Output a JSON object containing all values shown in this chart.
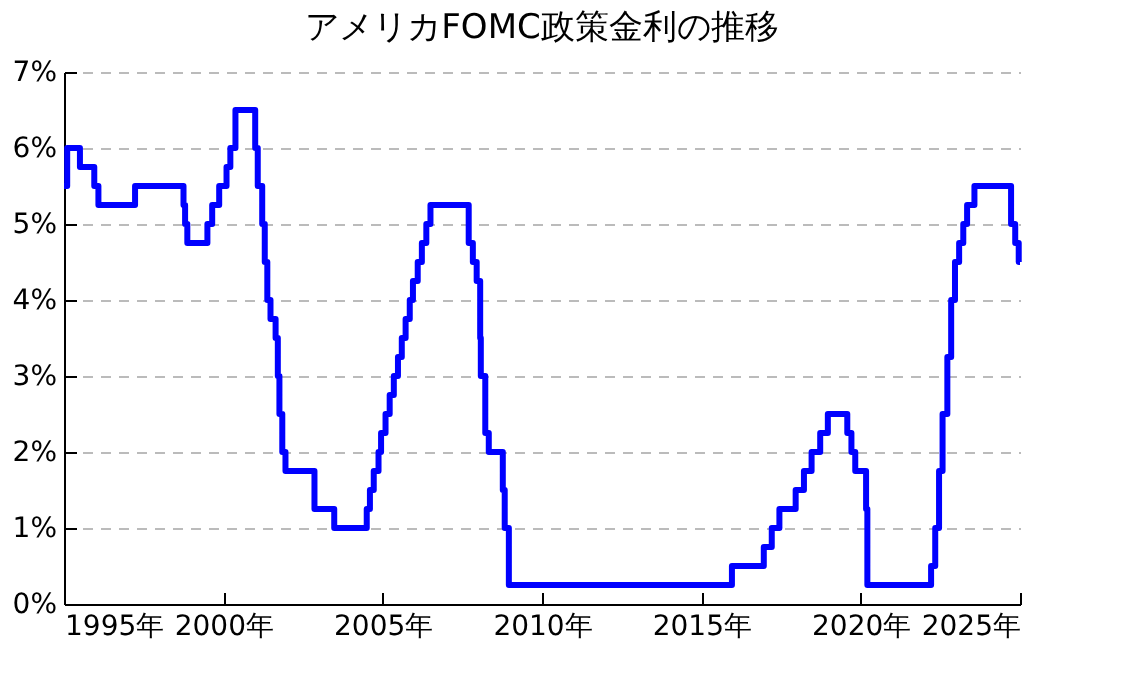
{
  "chart_data": {
    "type": "step",
    "title": "アメリカFOMC政策金利の推移",
    "x": [
      1995.0,
      1995.1,
      1995.5,
      1995.95,
      1996.08,
      1997.23,
      1998.75,
      1998.8,
      1998.87,
      1999.5,
      1999.65,
      1999.87,
      2000.1,
      2000.22,
      2000.38,
      2001.0,
      2001.08,
      2001.22,
      2001.3,
      2001.38,
      2001.48,
      2001.64,
      2001.71,
      2001.76,
      2001.85,
      2001.95,
      2002.86,
      2003.48,
      2004.5,
      2004.6,
      2004.72,
      2004.87,
      2004.95,
      2005.09,
      2005.22,
      2005.35,
      2005.48,
      2005.6,
      2005.72,
      2005.85,
      2005.95,
      2006.1,
      2006.23,
      2006.37,
      2006.5,
      2007.7,
      2007.83,
      2007.95,
      2008.06,
      2008.08,
      2008.22,
      2008.33,
      2008.77,
      2008.83,
      2008.96,
      2015.96,
      2016.96,
      2017.21,
      2017.45,
      2017.96,
      2018.22,
      2018.46,
      2018.73,
      2018.97,
      2019.58,
      2019.71,
      2019.83,
      2020.17,
      2020.21,
      2022.21,
      2022.34,
      2022.46,
      2022.57,
      2022.72,
      2022.84,
      2022.96,
      2023.09,
      2023.22,
      2023.34,
      2023.57,
      2024.72,
      2024.85,
      2024.96,
      2025.0
    ],
    "series": [
      {
        "color": "#0000ff",
        "values": [
          5.5,
          6.0,
          5.75,
          5.5,
          5.25,
          5.5,
          5.25,
          5.0,
          4.75,
          5.0,
          5.25,
          5.5,
          5.75,
          6.0,
          6.5,
          6.0,
          5.5,
          5.0,
          4.5,
          4.0,
          3.75,
          3.5,
          3.0,
          2.5,
          2.0,
          1.75,
          1.25,
          1.0,
          1.25,
          1.5,
          1.75,
          2.0,
          2.25,
          2.5,
          2.75,
          3.0,
          3.25,
          3.5,
          3.75,
          4.0,
          4.25,
          4.5,
          4.75,
          5.0,
          5.25,
          4.75,
          4.5,
          4.25,
          3.5,
          3.0,
          2.25,
          2.0,
          1.5,
          1.0,
          0.25,
          0.5,
          0.75,
          1.0,
          1.25,
          1.5,
          1.75,
          2.0,
          2.25,
          2.5,
          2.25,
          2.0,
          1.75,
          1.25,
          0.25,
          0.5,
          1.0,
          1.75,
          2.5,
          3.25,
          4.0,
          4.5,
          4.75,
          5.0,
          5.25,
          5.5,
          5.0,
          4.75,
          4.5,
          4.5
        ]
      }
    ],
    "xlim": [
      1995,
      2025
    ],
    "xticks": [
      {
        "value": 1995,
        "label": "1995年"
      },
      {
        "value": 2000,
        "label": "2000年"
      },
      {
        "value": 2005,
        "label": "2005年"
      },
      {
        "value": 2010,
        "label": "2010年"
      },
      {
        "value": 2015,
        "label": "2015年"
      },
      {
        "value": 2020,
        "label": "2020年"
      },
      {
        "value": 2025,
        "label": "2025年"
      }
    ],
    "ylim": [
      0,
      7
    ],
    "yticks": [
      {
        "value": 0,
        "label": "0%"
      },
      {
        "value": 1,
        "label": "1%"
      },
      {
        "value": 2,
        "label": "2%"
      },
      {
        "value": 3,
        "label": "3%"
      },
      {
        "value": 4,
        "label": "4%"
      },
      {
        "value": 5,
        "label": "5%"
      },
      {
        "value": 6,
        "label": "6%"
      },
      {
        "value": 7,
        "label": "7%"
      }
    ],
    "grid": "y",
    "line_style": "solid",
    "marker": "none"
  }
}
